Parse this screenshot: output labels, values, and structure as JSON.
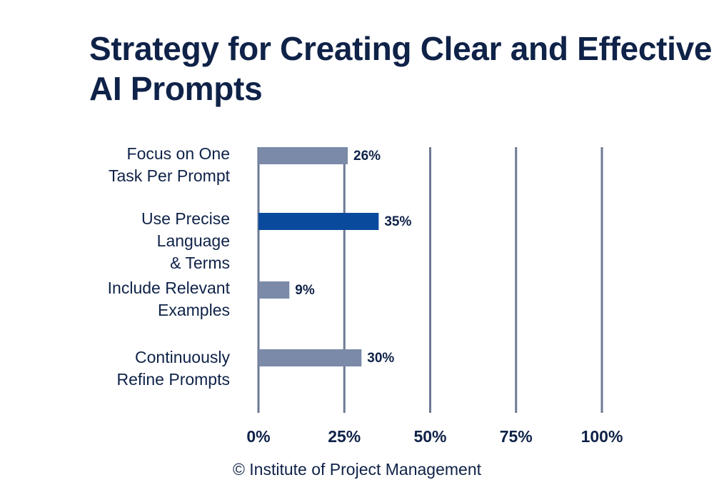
{
  "chart_data": {
    "type": "bar",
    "orientation": "horizontal",
    "title": "Strategy for Creating Clear and Effective AI Prompts",
    "categories": [
      "Focus on One\nTask Per Prompt",
      "Use Precise\nLanguage\n& Terms",
      "Include Relevant\nExamples",
      "Continuously\nRefine Prompts"
    ],
    "values": [
      26,
      35,
      9,
      30
    ],
    "value_labels": [
      "26%",
      "35%",
      "9%",
      "30%"
    ],
    "highlight_index": 1,
    "xlim": [
      0,
      100
    ],
    "xticks": [
      "0%",
      "25%",
      "50%",
      "75%",
      "100%"
    ],
    "grid": true,
    "colors": {
      "bar": "#7a8aa8",
      "highlight": "#0a4a9c",
      "grid": "#6c7a94",
      "text": "#0f2248"
    }
  },
  "footer": "© Institute of Project Management"
}
